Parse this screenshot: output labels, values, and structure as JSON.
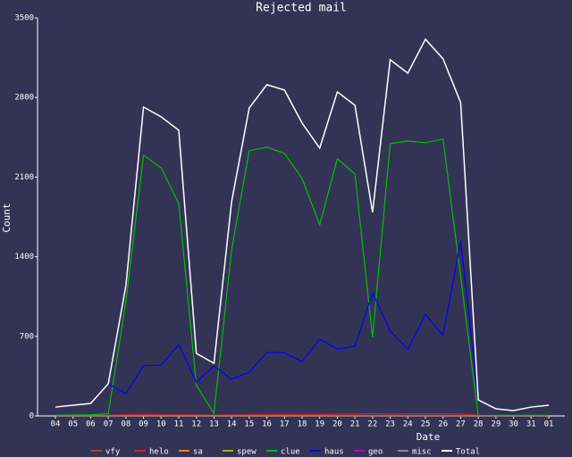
{
  "chart_data": {
    "type": "line",
    "title": "Rejected mail",
    "x_label": "Date",
    "y_label": "Count",
    "categories": [
      "04",
      "05",
      "06",
      "07",
      "08",
      "09",
      "10",
      "11",
      "12",
      "13",
      "14",
      "15",
      "16",
      "17",
      "18",
      "19",
      "20",
      "21",
      "22",
      "23",
      "24",
      "25",
      "26",
      "27",
      "28",
      "29",
      "30",
      "31",
      "01"
    ],
    "ylim": [
      0,
      3500
    ],
    "yticks": [
      0,
      700,
      1400,
      2100,
      2800,
      3500
    ],
    "series": [
      {
        "name": "vfy",
        "color": "#b03a3a",
        "values": [
          0,
          0,
          0,
          0,
          0,
          0,
          0,
          0,
          0,
          0,
          0,
          0,
          0,
          0,
          0,
          0,
          0,
          0,
          0,
          0,
          0,
          0,
          0,
          0,
          0,
          0,
          0,
          0,
          0
        ]
      },
      {
        "name": "helo",
        "color": "#e02020",
        "values": [
          3,
          3,
          4,
          5,
          10,
          12,
          10,
          10,
          8,
          6,
          8,
          10,
          12,
          12,
          12,
          12,
          15,
          15,
          20,
          15,
          18,
          18,
          18,
          15,
          5,
          3,
          3,
          3,
          3
        ]
      },
      {
        "name": "sa",
        "color": "#ff8800",
        "values": [
          0,
          0,
          0,
          0,
          0,
          0,
          0,
          0,
          0,
          0,
          0,
          0,
          0,
          0,
          0,
          0,
          0,
          0,
          0,
          0,
          0,
          0,
          0,
          0,
          0,
          0,
          0,
          0,
          0
        ]
      },
      {
        "name": "spew",
        "color": "#b0b000",
        "values": [
          0,
          0,
          0,
          0,
          0,
          0,
          0,
          0,
          0,
          0,
          0,
          0,
          0,
          0,
          0,
          0,
          0,
          0,
          0,
          0,
          0,
          0,
          0,
          0,
          0,
          0,
          0,
          0,
          0
        ]
      },
      {
        "name": "clue",
        "color": "#00c000",
        "values": [
          6,
          8,
          10,
          20,
          1005,
          2292,
          2182,
          1868,
          267,
          24,
          1460,
          2331,
          2363,
          2308,
          2088,
          1680,
          2261,
          2127,
          691,
          2394,
          2418,
          2402,
          2433,
          1224,
          0,
          5,
          5,
          5,
          5
        ]
      },
      {
        "name": "haus",
        "color": "#0000ff",
        "values": [
          78,
          94,
          110,
          283,
          196,
          440,
          447,
          628,
          298,
          440,
          322,
          385,
          557,
          557,
          479,
          675,
          589,
          612,
          1083,
          746,
          589,
          895,
          706,
          1538,
          141,
          63,
          47,
          78,
          94
        ]
      },
      {
        "name": "geo",
        "color": "#c000c0",
        "values": [
          0,
          0,
          0,
          0,
          0,
          0,
          0,
          0,
          0,
          0,
          0,
          0,
          0,
          0,
          0,
          0,
          0,
          0,
          0,
          0,
          0,
          0,
          0,
          0,
          0,
          0,
          0,
          0,
          0
        ]
      },
      {
        "name": "misc",
        "color": "#888888",
        "values": [
          0,
          0,
          0,
          0,
          0,
          0,
          0,
          0,
          0,
          0,
          0,
          0,
          0,
          0,
          0,
          0,
          0,
          0,
          0,
          0,
          0,
          0,
          0,
          0,
          0,
          0,
          0,
          0,
          0
        ]
      },
      {
        "name": "Total",
        "color": "#ffffff",
        "values": [
          78,
          94,
          110,
          283,
          1146,
          2716,
          2630,
          2512,
          550,
          463,
          1884,
          2708,
          2912,
          2865,
          2575,
          2355,
          2849,
          2732,
          1790,
          3132,
          3014,
          3312,
          3140,
          2755,
          141,
          63,
          47,
          78,
          94
        ]
      }
    ]
  }
}
